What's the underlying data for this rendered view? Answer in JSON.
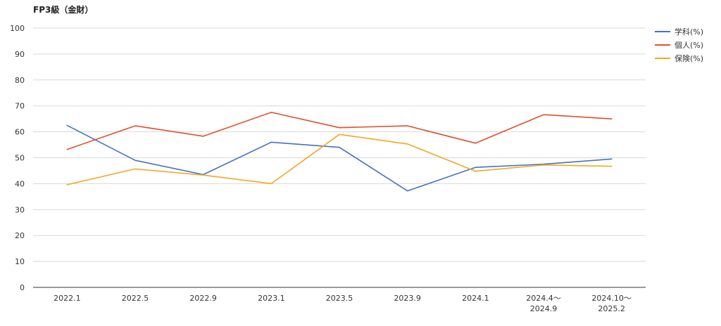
{
  "chart_data": {
    "type": "line",
    "title": "FP3級（金財）",
    "xlabel": "",
    "ylabel": "",
    "ylim": [
      0,
      100
    ],
    "yticks": [
      0,
      10,
      20,
      30,
      40,
      50,
      60,
      70,
      80,
      90,
      100
    ],
    "grid": true,
    "legend_position": "right",
    "categories": [
      [
        "2022.1"
      ],
      [
        "2022.5"
      ],
      [
        "2022.9"
      ],
      [
        "2023.1"
      ],
      [
        "2023.5"
      ],
      [
        "2023.9"
      ],
      [
        "2024.1"
      ],
      [
        "2024.4～",
        "2024.9"
      ],
      [
        "2024.10～",
        "2025.2"
      ]
    ],
    "series": [
      {
        "name": "学科(%)",
        "color": "#4472c4",
        "values": [
          62.5,
          49.0,
          43.5,
          56.0,
          54.0,
          37.2,
          46.3,
          47.5,
          49.5
        ]
      },
      {
        "name": "個人(%)",
        "color": "#e0502b",
        "values": [
          53.2,
          62.3,
          58.3,
          67.5,
          61.6,
          62.3,
          55.6,
          66.6,
          65.0
        ]
      },
      {
        "name": "保険(%)",
        "color": "#f5a623",
        "values": [
          39.6,
          45.7,
          43.3,
          40.0,
          59.0,
          55.3,
          44.8,
          47.2,
          46.7
        ]
      }
    ]
  }
}
